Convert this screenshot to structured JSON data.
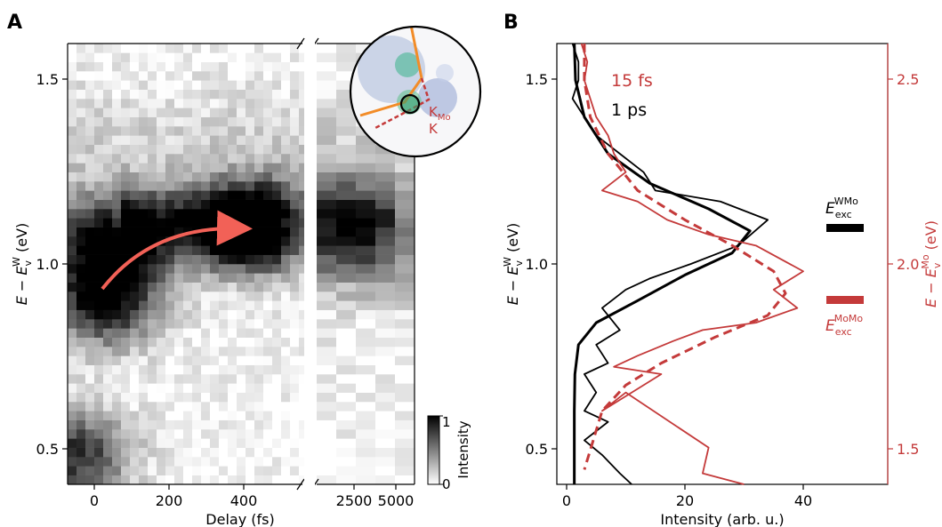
{
  "panel_a": {
    "letter": "A",
    "xlabel": "Delay (fs)",
    "ylabel_main": "E − E",
    "ylabel_sub": "v",
    "ylabel_sup": "W",
    "ylabel_unit": " (eV)",
    "colorbar": {
      "label": "Intensity",
      "max_label": "1",
      "min_label": "0"
    },
    "inset": {
      "point_label": "K",
      "point_sub": "Mo",
      "point2_label": "K"
    }
  },
  "panel_b": {
    "letter": "B",
    "xlabel": "Intensity (arb. u.)",
    "ylabel_left_main": "E − E",
    "ylabel_left_sub": "v",
    "ylabel_left_sup": "W",
    "ylabel_left_unit": " (eV)",
    "ylabel_right_main": "E − E",
    "ylabel_right_sub": "v",
    "ylabel_right_sup": "Mo",
    "ylabel_right_unit": " (eV)",
    "legend_15fs": "15 fs",
    "legend_1ps": "1 ps",
    "marker_wmo": {
      "base": "E",
      "sub": "exc",
      "sup": "WMo"
    },
    "marker_momo": {
      "base": "E",
      "sub": "exc",
      "sup": "MoMo"
    }
  },
  "colors": {
    "black": "#000000",
    "red": "#c43a3a",
    "arrow": "#f26157",
    "orange": "#f28c28"
  },
  "chart_data": [
    {
      "type": "heatmap",
      "title": "",
      "xlabel": "Delay (fs)",
      "ylabel": "E − E_v^W (eV)",
      "x_ticks": [
        "0",
        "200",
        "400",
        "2500",
        "5000"
      ],
      "y_ticks": [
        "0.5",
        "1.0",
        "1.5"
      ],
      "ylim": [
        0.4,
        1.6
      ],
      "colorbar_range": [
        0,
        1
      ],
      "annotation": "arrow indicating signal shifting from ~0.93 eV at ~30 fs up to ~1.1 eV at ~420 fs",
      "band_features": [
        {
          "delay_fs": 30,
          "energy_eV": 0.9,
          "intensity": 0.95
        },
        {
          "delay_fs": 30,
          "energy_eV": 1.05,
          "intensity": 0.75
        },
        {
          "delay_fs": 420,
          "energy_eV": 1.1,
          "intensity": 0.85
        },
        {
          "delay_fs": 2500,
          "energy_eV": 1.12,
          "intensity": 0.7
        },
        {
          "delay_fs": -50,
          "energy_eV": 0.48,
          "intensity": 0.8
        }
      ]
    },
    {
      "type": "line",
      "xlabel": "Intensity (arb. u.)",
      "ylabel": "E − E_v^W (eV)",
      "ylabel_right": "E − E_v^Mo (eV)",
      "xlim": [
        -1,
        55
      ],
      "ylim": [
        0.4,
        1.6
      ],
      "ylim_right": [
        1.4,
        2.6
      ],
      "x_ticks": [
        "0",
        "20",
        "40"
      ],
      "y_ticks": [
        "0.5",
        "1.0",
        "1.5"
      ],
      "y_ticks_right": [
        "1.5",
        "2.0",
        "2.5"
      ],
      "series": [
        {
          "name": "1 ps",
          "style": "raw",
          "color": "#000000",
          "points": [
            [
              1,
              1.6
            ],
            [
              2,
              1.55
            ],
            [
              2,
              1.5
            ],
            [
              1,
              1.45
            ],
            [
              3,
              1.4
            ],
            [
              5,
              1.35
            ],
            [
              9,
              1.3
            ],
            [
              13,
              1.25
            ],
            [
              15,
              1.2
            ],
            [
              26,
              1.17
            ],
            [
              34,
              1.12
            ],
            [
              29,
              1.05
            ],
            [
              21,
              1.0
            ],
            [
              14,
              0.96
            ],
            [
              10,
              0.93
            ],
            [
              6,
              0.88
            ],
            [
              9,
              0.82
            ],
            [
              5,
              0.78
            ],
            [
              7,
              0.73
            ],
            [
              3,
              0.7
            ],
            [
              5,
              0.65
            ],
            [
              3,
              0.6
            ],
            [
              7,
              0.57
            ],
            [
              3,
              0.52
            ],
            [
              6,
              0.48
            ],
            [
              9,
              0.43
            ],
            [
              11,
              0.4
            ]
          ]
        },
        {
          "name": "1 ps fit",
          "style": "fit",
          "color": "#000000",
          "points": [
            [
              1.3,
              1.6
            ],
            [
              1.5,
              1.5
            ],
            [
              3,
              1.4
            ],
            [
              7,
              1.3
            ],
            [
              14,
              1.22
            ],
            [
              24,
              1.15
            ],
            [
              31,
              1.09
            ],
            [
              28,
              1.03
            ],
            [
              20,
              0.97
            ],
            [
              12,
              0.9
            ],
            [
              5,
              0.84
            ],
            [
              2,
              0.78
            ],
            [
              1.4,
              0.7
            ],
            [
              1.3,
              0.6
            ],
            [
              1.3,
              0.5
            ],
            [
              1.3,
              0.4
            ]
          ]
        },
        {
          "name": "15 fs",
          "style": "raw",
          "color": "#c43a3a",
          "points": [
            [
              2.5,
              2.6
            ],
            [
              3.5,
              2.55
            ],
            [
              3,
              2.5
            ],
            [
              4,
              2.45
            ],
            [
              5,
              2.4
            ],
            [
              7,
              2.35
            ],
            [
              8,
              2.3
            ],
            [
              10,
              2.25
            ],
            [
              6,
              2.2
            ],
            [
              12,
              2.17
            ],
            [
              17,
              2.12
            ],
            [
              24,
              2.08
            ],
            [
              32,
              2.05
            ],
            [
              40,
              1.98
            ],
            [
              35,
              1.93
            ],
            [
              39,
              1.88
            ],
            [
              32,
              1.84
            ],
            [
              23,
              1.82
            ],
            [
              18,
              1.79
            ],
            [
              12,
              1.75
            ],
            [
              8,
              1.72
            ],
            [
              16,
              1.7
            ],
            [
              6,
              1.6
            ],
            [
              10,
              1.65
            ],
            [
              24,
              1.5
            ],
            [
              23,
              1.43
            ],
            [
              30,
              1.4
            ]
          ]
        },
        {
          "name": "15 fs fit",
          "style": "fit",
          "color": "#c43a3a",
          "points": [
            [
              3,
              2.6
            ],
            [
              3,
              2.5
            ],
            [
              4,
              2.4
            ],
            [
              7,
              2.3
            ],
            [
              12,
              2.2
            ],
            [
              20,
              2.12
            ],
            [
              28,
              2.05
            ],
            [
              35,
              1.98
            ],
            [
              37,
              1.92
            ],
            [
              34,
              1.86
            ],
            [
              25,
              1.8
            ],
            [
              16,
              1.73
            ],
            [
              10,
              1.67
            ],
            [
              6,
              1.6
            ],
            [
              4.5,
              1.52
            ],
            [
              3,
              1.44
            ]
          ]
        }
      ],
      "markers": [
        {
          "label": "E_exc^WMo",
          "energy_eV_left": 1.11,
          "color": "#000000"
        },
        {
          "label": "E_exc^MoMo",
          "energy_eV_right": 1.9,
          "color": "#c43a3a"
        }
      ]
    }
  ]
}
